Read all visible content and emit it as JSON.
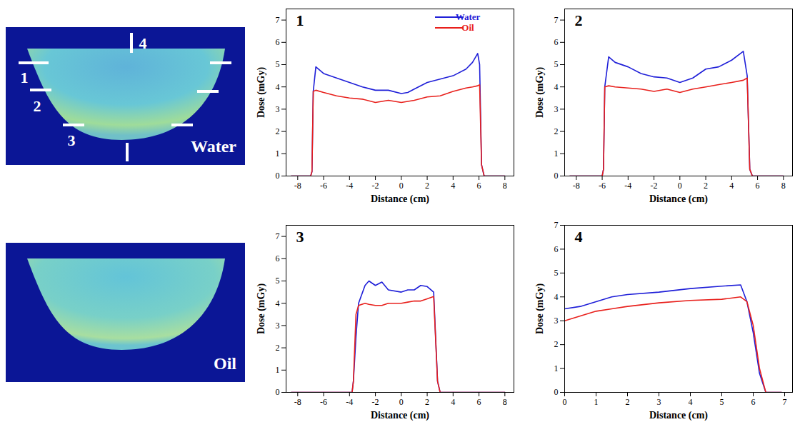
{
  "chart_data": [
    {
      "type": "line",
      "title": "1",
      "xlabel": "Distance (cm)",
      "ylabel": "Dose (mGy)",
      "x": [
        -8.5,
        -7,
        -6.9,
        -6.8,
        -6.6,
        -6,
        -5,
        -4,
        -3,
        -2,
        -1,
        0,
        0.5,
        1,
        2,
        3,
        4,
        5,
        5.5,
        5.9,
        6.05,
        6.2,
        6.4,
        8
      ],
      "series": [
        {
          "name": "Water",
          "color": "#1f1fd8",
          "values": [
            0,
            0,
            0.2,
            3.8,
            4.9,
            4.6,
            4.4,
            4.2,
            4.0,
            3.85,
            3.85,
            3.7,
            3.75,
            3.9,
            4.2,
            4.35,
            4.5,
            4.8,
            5.1,
            5.5,
            5.0,
            0.5,
            0,
            0
          ]
        },
        {
          "name": "Oil",
          "color": "#e8201c",
          "values": [
            0,
            0,
            0.2,
            3.8,
            3.85,
            3.75,
            3.6,
            3.5,
            3.45,
            3.3,
            3.4,
            3.3,
            3.35,
            3.4,
            3.55,
            3.6,
            3.8,
            3.95,
            4.0,
            4.05,
            4.1,
            0.5,
            0,
            0
          ]
        }
      ],
      "xlim": [
        -8.9,
        8.7
      ],
      "xticks": [
        -8,
        -6,
        -4,
        -2,
        0,
        2,
        4,
        6,
        8
      ],
      "ylim": [
        0,
        7.5
      ],
      "yticks": [
        0,
        1,
        2,
        3,
        4,
        5,
        6,
        7
      ],
      "legend": "upper right",
      "grid": false
    },
    {
      "type": "line",
      "title": "2",
      "xlabel": "Distance (cm)",
      "ylabel": "Dose (mGy)",
      "x": [
        -8.5,
        -6,
        -5.9,
        -5.8,
        -5.5,
        -5,
        -4,
        -3,
        -2,
        -1,
        0,
        1,
        2,
        3,
        4,
        4.9,
        5.2,
        5.4,
        5.6,
        8
      ],
      "series": [
        {
          "name": "Water",
          "color": "#1f1fd8",
          "values": [
            0,
            0,
            0.3,
            4.0,
            5.35,
            5.1,
            4.9,
            4.6,
            4.45,
            4.4,
            4.2,
            4.4,
            4.8,
            4.9,
            5.2,
            5.6,
            4.5,
            0.3,
            0,
            0
          ]
        },
        {
          "name": "Oil",
          "color": "#e8201c",
          "values": [
            0,
            0,
            0.3,
            4.0,
            4.05,
            4.0,
            3.95,
            3.9,
            3.8,
            3.9,
            3.75,
            3.9,
            4.0,
            4.1,
            4.2,
            4.3,
            4.4,
            0.3,
            0,
            0
          ]
        }
      ],
      "xlim": [
        -8.9,
        8.7
      ],
      "xticks": [
        -8,
        -6,
        -4,
        -2,
        0,
        2,
        4,
        6,
        8
      ],
      "ylim": [
        0,
        7.5
      ],
      "yticks": [
        0,
        1,
        2,
        3,
        4,
        5,
        6,
        7
      ],
      "grid": false
    },
    {
      "type": "line",
      "title": "3",
      "xlabel": "Distance (cm)",
      "ylabel": "Dose (mGy)",
      "x": [
        -8.5,
        -3.8,
        -3.7,
        -3.5,
        -3.3,
        -2.8,
        -2.5,
        -2,
        -1.5,
        -1,
        0,
        0.5,
        1,
        1.5,
        2,
        2.5,
        2.8,
        3,
        8
      ],
      "series": [
        {
          "name": "Water",
          "color": "#1f1fd8",
          "values": [
            0,
            0,
            0.5,
            2.5,
            4.0,
            4.8,
            5.0,
            4.8,
            4.95,
            4.6,
            4.5,
            4.6,
            4.6,
            4.8,
            4.75,
            4.5,
            0.5,
            0,
            0
          ]
        },
        {
          "name": "Oil",
          "color": "#e8201c",
          "values": [
            0,
            0,
            0.5,
            3.5,
            3.9,
            4.0,
            3.95,
            3.9,
            3.9,
            4.0,
            4.0,
            4.05,
            4.1,
            4.1,
            4.2,
            4.3,
            0.5,
            0,
            0
          ]
        }
      ],
      "xlim": [
        -8.9,
        8.7
      ],
      "xticks": [
        -8,
        -6,
        -4,
        -2,
        0,
        2,
        4,
        6,
        8
      ],
      "ylim": [
        0,
        7.5
      ],
      "yticks": [
        0,
        1,
        2,
        3,
        4,
        5,
        6,
        7
      ],
      "grid": false
    },
    {
      "type": "line",
      "title": "4",
      "xlabel": "Distance (cm)",
      "ylabel": "Dose (mGy)",
      "x": [
        0,
        0.5,
        1,
        1.5,
        2,
        3,
        4,
        5,
        5.6,
        5.8,
        6,
        6.2,
        6.4,
        6.9
      ],
      "series": [
        {
          "name": "Water",
          "color": "#1f1fd8",
          "values": [
            3.5,
            3.6,
            3.8,
            4.0,
            4.1,
            4.2,
            4.35,
            4.45,
            4.5,
            3.8,
            2.5,
            0.8,
            0,
            0
          ]
        },
        {
          "name": "Oil",
          "color": "#e8201c",
          "values": [
            3.0,
            3.2,
            3.4,
            3.5,
            3.6,
            3.75,
            3.85,
            3.9,
            4.0,
            3.8,
            2.8,
            1.0,
            0,
            0
          ]
        }
      ],
      "xlim": [
        0,
        7.25
      ],
      "xticks": [
        0,
        1,
        2,
        3,
        4,
        5,
        6,
        7
      ],
      "ylim": [
        0,
        7
      ],
      "yticks": [
        0,
        1,
        2,
        3,
        4,
        5,
        6,
        7
      ],
      "grid": false
    }
  ],
  "images": [
    {
      "label": "Water",
      "markers": [
        "1",
        "2",
        "3",
        "4"
      ]
    },
    {
      "label": "Oil"
    }
  ]
}
